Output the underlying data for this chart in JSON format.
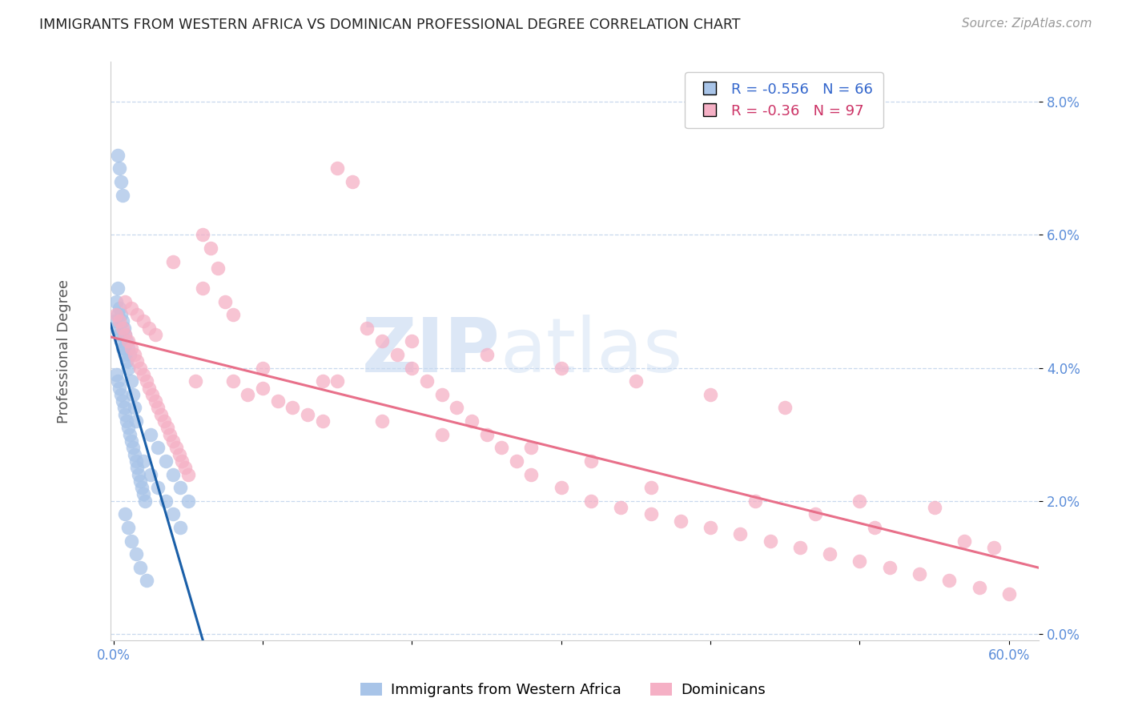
{
  "title": "IMMIGRANTS FROM WESTERN AFRICA VS DOMINICAN PROFESSIONAL DEGREE CORRELATION CHART",
  "source": "Source: ZipAtlas.com",
  "ylabel": "Professional Degree",
  "x_tick_labels": [
    "0.0%",
    "",
    "",
    "",
    "",
    "",
    "60.0%"
  ],
  "x_tick_values": [
    0.0,
    0.1,
    0.2,
    0.3,
    0.4,
    0.5,
    0.6
  ],
  "y_tick_labels_right": [
    "0.0%",
    "2.0%",
    "4.0%",
    "6.0%",
    "8.0%"
  ],
  "y_tick_values": [
    0.0,
    0.02,
    0.04,
    0.06,
    0.08
  ],
  "xlim": [
    -0.002,
    0.62
  ],
  "ylim": [
    -0.001,
    0.086
  ],
  "blue_R": -0.556,
  "blue_N": 66,
  "pink_R": -0.36,
  "pink_N": 97,
  "blue_color": "#a8c4e8",
  "pink_color": "#f5b0c5",
  "blue_line_color": "#1a5fa8",
  "pink_line_color": "#e8708a",
  "watermark_zip": "ZIP",
  "watermark_atlas": "atlas",
  "legend_label_blue": "Immigrants from Western Africa",
  "legend_label_pink": "Dominicans",
  "blue_scatter_x": [
    0.001,
    0.002,
    0.003,
    0.004,
    0.005,
    0.006,
    0.007,
    0.008,
    0.009,
    0.01,
    0.002,
    0.003,
    0.004,
    0.005,
    0.006,
    0.007,
    0.008,
    0.009,
    0.01,
    0.011,
    0.012,
    0.013,
    0.014,
    0.015,
    0.016,
    0.017,
    0.018,
    0.019,
    0.02,
    0.021,
    0.002,
    0.003,
    0.004,
    0.005,
    0.006,
    0.007,
    0.008,
    0.009,
    0.01,
    0.011,
    0.012,
    0.013,
    0.014,
    0.015,
    0.02,
    0.025,
    0.03,
    0.035,
    0.04,
    0.045,
    0.003,
    0.004,
    0.005,
    0.006,
    0.025,
    0.03,
    0.035,
    0.04,
    0.045,
    0.05,
    0.008,
    0.01,
    0.012,
    0.015,
    0.018,
    0.022
  ],
  "blue_scatter_y": [
    0.047,
    0.046,
    0.048,
    0.045,
    0.044,
    0.043,
    0.043,
    0.042,
    0.041,
    0.04,
    0.039,
    0.038,
    0.037,
    0.036,
    0.035,
    0.034,
    0.033,
    0.032,
    0.031,
    0.03,
    0.029,
    0.028,
    0.027,
    0.026,
    0.025,
    0.024,
    0.023,
    0.022,
    0.021,
    0.02,
    0.05,
    0.052,
    0.049,
    0.048,
    0.047,
    0.046,
    0.045,
    0.044,
    0.043,
    0.042,
    0.038,
    0.036,
    0.034,
    0.032,
    0.026,
    0.024,
    0.022,
    0.02,
    0.018,
    0.016,
    0.072,
    0.07,
    0.068,
    0.066,
    0.03,
    0.028,
    0.026,
    0.024,
    0.022,
    0.02,
    0.018,
    0.016,
    0.014,
    0.012,
    0.01,
    0.008
  ],
  "pink_scatter_x": [
    0.002,
    0.004,
    0.006,
    0.008,
    0.01,
    0.012,
    0.014,
    0.016,
    0.018,
    0.02,
    0.022,
    0.024,
    0.026,
    0.028,
    0.03,
    0.032,
    0.034,
    0.036,
    0.038,
    0.04,
    0.042,
    0.044,
    0.046,
    0.048,
    0.05,
    0.055,
    0.06,
    0.065,
    0.07,
    0.075,
    0.08,
    0.09,
    0.1,
    0.11,
    0.12,
    0.13,
    0.14,
    0.15,
    0.16,
    0.17,
    0.18,
    0.19,
    0.2,
    0.21,
    0.22,
    0.23,
    0.24,
    0.25,
    0.26,
    0.27,
    0.28,
    0.3,
    0.32,
    0.34,
    0.36,
    0.38,
    0.4,
    0.42,
    0.44,
    0.46,
    0.48,
    0.5,
    0.52,
    0.54,
    0.56,
    0.58,
    0.6,
    0.008,
    0.012,
    0.016,
    0.02,
    0.024,
    0.028,
    0.1,
    0.15,
    0.2,
    0.25,
    0.3,
    0.35,
    0.4,
    0.45,
    0.5,
    0.55,
    0.06,
    0.08,
    0.04,
    0.32,
    0.28,
    0.18,
    0.22,
    0.14,
    0.36,
    0.43,
    0.47,
    0.51,
    0.57,
    0.59
  ],
  "pink_scatter_y": [
    0.048,
    0.047,
    0.046,
    0.045,
    0.044,
    0.043,
    0.042,
    0.041,
    0.04,
    0.039,
    0.038,
    0.037,
    0.036,
    0.035,
    0.034,
    0.033,
    0.032,
    0.031,
    0.03,
    0.029,
    0.028,
    0.027,
    0.026,
    0.025,
    0.024,
    0.038,
    0.06,
    0.058,
    0.055,
    0.05,
    0.038,
    0.036,
    0.037,
    0.035,
    0.034,
    0.033,
    0.032,
    0.07,
    0.068,
    0.046,
    0.044,
    0.042,
    0.04,
    0.038,
    0.036,
    0.034,
    0.032,
    0.03,
    0.028,
    0.026,
    0.024,
    0.022,
    0.02,
    0.019,
    0.018,
    0.017,
    0.016,
    0.015,
    0.014,
    0.013,
    0.012,
    0.011,
    0.01,
    0.009,
    0.008,
    0.007,
    0.006,
    0.05,
    0.049,
    0.048,
    0.047,
    0.046,
    0.045,
    0.04,
    0.038,
    0.044,
    0.042,
    0.04,
    0.038,
    0.036,
    0.034,
    0.02,
    0.019,
    0.052,
    0.048,
    0.056,
    0.026,
    0.028,
    0.032,
    0.03,
    0.038,
    0.022,
    0.02,
    0.018,
    0.016,
    0.014,
    0.013
  ]
}
